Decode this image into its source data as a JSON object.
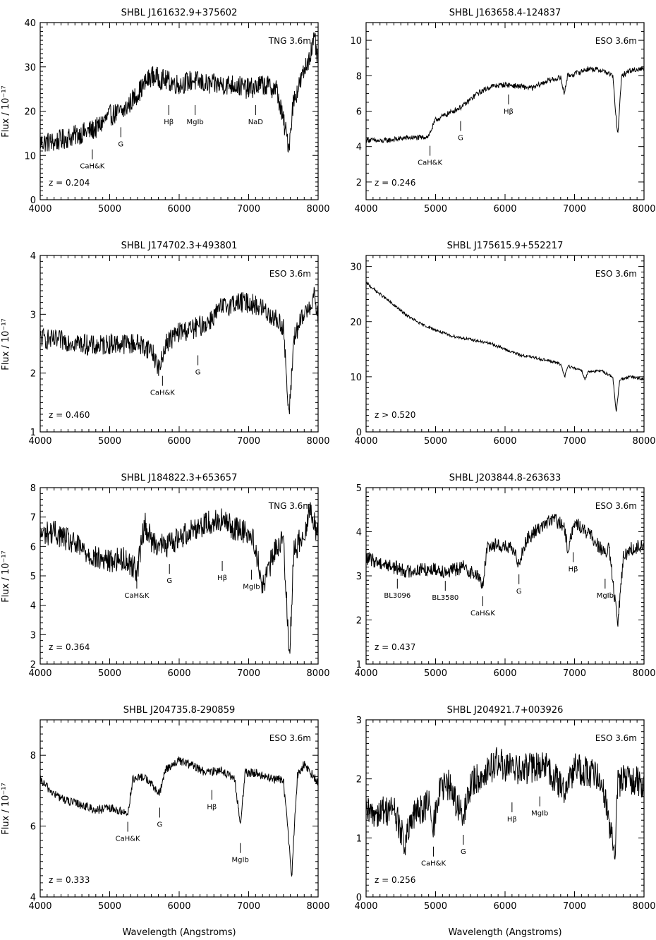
{
  "figure": {
    "x_axis_label": "Wavelength (Angstroms)",
    "y_axis_label": "Flux / 10⁻¹⁷"
  },
  "chart_data": [
    {
      "type": "line",
      "title": "SHBL J161632.9+375602",
      "xlabel": "Wavelength (Angstroms)",
      "ylabel": "Flux / 10⁻¹⁷",
      "xlim": [
        4000,
        8000
      ],
      "ylim": [
        0,
        40
      ],
      "xticks": [
        4000,
        5000,
        6000,
        7000,
        8000
      ],
      "yticks": [
        0,
        10,
        20,
        30,
        40
      ],
      "instrument": "TNG 3.6m",
      "redshift_label": "z = 0.204",
      "series": [
        {
          "x": [
            4000,
            4200,
            4400,
            4600,
            4800,
            5000,
            5200,
            5400,
            5600,
            5800,
            6000,
            6200,
            6400,
            6600,
            6800,
            7000,
            7200,
            7400,
            7580,
            7640,
            7800,
            7950,
            8000
          ],
          "y": [
            13,
            13,
            14,
            15,
            16,
            19,
            20,
            24,
            28,
            27,
            26,
            27,
            26,
            26,
            26,
            25,
            26,
            25,
            12,
            22,
            29,
            36,
            31
          ]
        }
      ],
      "lines": [
        {
          "label": "CaH&K",
          "x": 4750,
          "flux": 12
        },
        {
          "label": "G",
          "x": 5160,
          "flux": 17
        },
        {
          "label": "Hβ",
          "x": 5850,
          "flux": 22
        },
        {
          "label": "MgIb",
          "x": 6230,
          "flux": 22
        },
        {
          "label": "NaD",
          "x": 7100,
          "flux": 22
        }
      ]
    },
    {
      "type": "line",
      "title": "SHBL J163658.4-124837",
      "xlabel": "Wavelength (Angstroms)",
      "ylabel": "Flux / 10⁻¹⁷",
      "xlim": [
        4000,
        8000
      ],
      "ylim": [
        1,
        11
      ],
      "xticks": [
        4000,
        5000,
        6000,
        7000,
        8000
      ],
      "yticks": [
        2,
        4,
        6,
        8,
        10
      ],
      "instrument": "ESO 3.6m",
      "redshift_label": "z = 0.246",
      "series": [
        {
          "x": [
            4000,
            4200,
            4400,
            4600,
            4800,
            4900,
            5000,
            5200,
            5400,
            5600,
            5800,
            6000,
            6200,
            6400,
            6600,
            6800,
            6850,
            6900,
            7000,
            7200,
            7400,
            7550,
            7620,
            7680,
            7800,
            8000
          ],
          "y": [
            4.4,
            4.3,
            4.4,
            4.5,
            4.5,
            4.6,
            5.5,
            5.9,
            6.3,
            7.0,
            7.4,
            7.5,
            7.4,
            7.3,
            7.7,
            7.9,
            7.0,
            8.0,
            8.1,
            8.4,
            8.3,
            8.0,
            4.6,
            8.0,
            8.3,
            8.4
          ]
        }
      ],
      "lines": [
        {
          "label": "CaH&K",
          "x": 4920,
          "flux": 4.2
        },
        {
          "label": "G",
          "x": 5360,
          "flux": 5.6
        },
        {
          "label": "Hβ",
          "x": 6050,
          "flux": 7.1
        }
      ]
    },
    {
      "type": "line",
      "title": "SHBL J174702.3+493801",
      "xlabel": "Wavelength (Angstroms)",
      "ylabel": "Flux / 10⁻¹⁷",
      "xlim": [
        4000,
        8000
      ],
      "ylim": [
        1,
        4
      ],
      "xticks": [
        4000,
        5000,
        6000,
        7000,
        8000
      ],
      "yticks": [
        1,
        2,
        3,
        4
      ],
      "instrument": "ESO 3.6m",
      "redshift_label": "z = 0.460",
      "series": [
        {
          "x": [
            4000,
            4200,
            4400,
            4600,
            4800,
            5000,
            5200,
            5400,
            5600,
            5720,
            5800,
            6000,
            6200,
            6400,
            6600,
            6800,
            7000,
            7200,
            7400,
            7500,
            7580,
            7650,
            7800,
            7950,
            8000
          ],
          "y": [
            2.6,
            2.55,
            2.55,
            2.5,
            2.45,
            2.5,
            2.5,
            2.5,
            2.4,
            2.05,
            2.5,
            2.7,
            2.75,
            2.85,
            3.1,
            3.2,
            3.2,
            3.1,
            2.9,
            2.8,
            1.2,
            2.6,
            3.0,
            3.3,
            2.9
          ]
        }
      ],
      "lines": [
        {
          "label": "CaH&K",
          "x": 5760,
          "flux": 2.0
        },
        {
          "label": "G",
          "x": 6270,
          "flux": 2.35
        }
      ]
    },
    {
      "type": "line",
      "title": "SHBL J175615.9+552217",
      "xlabel": "Wavelength (Angstroms)",
      "ylabel": "Flux / 10⁻¹⁷",
      "xlim": [
        4000,
        8000
      ],
      "ylim": [
        0,
        32
      ],
      "xticks": [
        4000,
        5000,
        6000,
        7000,
        8000
      ],
      "yticks": [
        0,
        10,
        20,
        30
      ],
      "instrument": "ESO 3.6m",
      "redshift_label": "z > 0.520",
      "series": [
        {
          "x": [
            4000,
            4200,
            4400,
            4600,
            4800,
            5000,
            5200,
            5400,
            5600,
            5800,
            6000,
            6200,
            6400,
            6600,
            6800,
            6860,
            6900,
            7000,
            7100,
            7150,
            7200,
            7400,
            7550,
            7600,
            7650,
            7800,
            8000
          ],
          "y": [
            27,
            25,
            23,
            21,
            19.5,
            18.5,
            17.5,
            17,
            16.5,
            16,
            15,
            14,
            13.5,
            13,
            12.3,
            10,
            12,
            11.5,
            11.3,
            9.5,
            11,
            11,
            10,
            3.5,
            9.5,
            10,
            9.5
          ]
        }
      ],
      "lines": []
    },
    {
      "type": "line",
      "title": "SHBL J184822.3+653657",
      "xlabel": "Wavelength (Angstroms)",
      "ylabel": "Flux / 10⁻¹⁷",
      "xlim": [
        4000,
        8000
      ],
      "ylim": [
        2,
        8
      ],
      "xticks": [
        4000,
        5000,
        6000,
        7000,
        8000
      ],
      "yticks": [
        2,
        3,
        4,
        5,
        6,
        7,
        8
      ],
      "instrument": "TNG 3.6m",
      "redshift_label": "z = 0.364",
      "series": [
        {
          "x": [
            4000,
            4200,
            4400,
            4600,
            4800,
            5000,
            5200,
            5400,
            5500,
            5600,
            5800,
            6000,
            6200,
            6400,
            6600,
            6800,
            7000,
            7100,
            7200,
            7400,
            7500,
            7590,
            7650,
            7800,
            7900,
            8000
          ],
          "y": [
            6.4,
            6.5,
            6.2,
            5.9,
            5.6,
            5.5,
            5.6,
            5.2,
            6.8,
            6.2,
            6.0,
            6.3,
            6.6,
            6.8,
            6.9,
            6.6,
            6.5,
            6.0,
            4.6,
            6.0,
            6.2,
            2.3,
            5.8,
            6.5,
            7.3,
            6.3
          ]
        }
      ],
      "lines": [
        {
          "label": "CaH&K",
          "x": 5390,
          "flux": 5.0
        },
        {
          "label": "G",
          "x": 5860,
          "flux": 5.5
        },
        {
          "label": "Hβ",
          "x": 6620,
          "flux": 5.6
        },
        {
          "label": "MgIb",
          "x": 7040,
          "flux": 5.3
        }
      ]
    },
    {
      "type": "line",
      "title": "SHBL J203844.8-263633",
      "xlabel": "Wavelength (Angstroms)",
      "ylabel": "Flux / 10⁻¹⁷",
      "xlim": [
        4000,
        8000
      ],
      "ylim": [
        1,
        5
      ],
      "xticks": [
        4000,
        5000,
        6000,
        7000,
        8000
      ],
      "yticks": [
        1,
        2,
        3,
        4,
        5
      ],
      "instrument": "ESO 3.6m",
      "redshift_label": "z = 0.437",
      "series": [
        {
          "x": [
            4000,
            4200,
            4400,
            4600,
            4800,
            5000,
            5200,
            5400,
            5600,
            5680,
            5750,
            5900,
            6100,
            6200,
            6300,
            6500,
            6700,
            6850,
            6900,
            7000,
            7100,
            7300,
            7420,
            7500,
            7620,
            7700,
            7800,
            8000
          ],
          "y": [
            3.4,
            3.3,
            3.2,
            3.1,
            3.15,
            3.15,
            3.1,
            3.2,
            3.0,
            2.8,
            3.7,
            3.7,
            3.6,
            3.3,
            3.8,
            4.1,
            4.3,
            4.1,
            3.6,
            4.2,
            4.1,
            3.8,
            3.5,
            3.6,
            1.9,
            3.4,
            3.6,
            3.7
          ]
        }
      ],
      "lines": [
        {
          "label": "BL3096",
          "x": 4450,
          "flux": 3.0
        },
        {
          "label": "BL3580",
          "x": 5140,
          "flux": 2.95
        },
        {
          "label": "CaH&K",
          "x": 5680,
          "flux": 2.6
        },
        {
          "label": "G",
          "x": 6200,
          "flux": 3.1
        },
        {
          "label": "Hβ",
          "x": 6980,
          "flux": 3.6
        },
        {
          "label": "MgIb",
          "x": 7440,
          "flux": 3.0
        }
      ]
    },
    {
      "type": "line",
      "title": "SHBL J204735.8-290859",
      "xlabel": "Wavelength (Angstroms)",
      "ylabel": "Flux / 10⁻¹⁷",
      "xlim": [
        4000,
        8000
      ],
      "ylim": [
        4,
        9
      ],
      "xticks": [
        4000,
        5000,
        6000,
        7000,
        8000
      ],
      "yticks": [
        4,
        6,
        8
      ],
      "instrument": "ESO 3.6m",
      "redshift_label": "z = 0.333",
      "series": [
        {
          "x": [
            4000,
            4200,
            4400,
            4600,
            4800,
            5000,
            5200,
            5260,
            5330,
            5500,
            5720,
            5800,
            6000,
            6200,
            6400,
            6600,
            6800,
            6880,
            6950,
            7100,
            7300,
            7500,
            7620,
            7700,
            7800,
            8000
          ],
          "y": [
            7.3,
            6.9,
            6.7,
            6.6,
            6.45,
            6.5,
            6.4,
            6.35,
            7.3,
            7.4,
            6.9,
            7.6,
            7.85,
            7.7,
            7.5,
            7.6,
            7.3,
            6.05,
            7.5,
            7.5,
            7.35,
            7.3,
            4.6,
            7.4,
            7.75,
            7.25
          ]
        }
      ],
      "lines": [
        {
          "label": "CaH&K",
          "x": 5260,
          "flux": 6.2
        },
        {
          "label": "G",
          "x": 5720,
          "flux": 6.6
        },
        {
          "label": "Hβ",
          "x": 6470,
          "flux": 7.1
        },
        {
          "label": "MgIb",
          "x": 6880,
          "flux": 5.6
        }
      ]
    },
    {
      "type": "line",
      "title": "SHBL J204921.7+003926",
      "xlabel": "Wavelength (Angstroms)",
      "ylabel": "Flux / 10⁻¹⁷",
      "xlim": [
        4000,
        8000
      ],
      "ylim": [
        0,
        3
      ],
      "xticks": [
        4000,
        5000,
        6000,
        7000,
        8000
      ],
      "yticks": [
        0,
        1,
        2,
        3
      ],
      "instrument": "ESO 3.6m",
      "redshift_label": "z = 0.256",
      "series": [
        {
          "x": [
            4000,
            4200,
            4400,
            4550,
            4700,
            4900,
            4960,
            5050,
            5200,
            5400,
            5500,
            5700,
            5900,
            6000,
            6200,
            6400,
            6600,
            6850,
            7000,
            7200,
            7400,
            7580,
            7620,
            7700,
            7900,
            8000
          ],
          "y": [
            1.4,
            1.45,
            1.5,
            0.9,
            1.4,
            1.6,
            1.1,
            1.8,
            1.9,
            1.3,
            1.9,
            2.1,
            2.3,
            2.2,
            2.15,
            2.2,
            2.2,
            1.8,
            2.2,
            2.1,
            2.0,
            0.7,
            1.9,
            2.0,
            2.0,
            1.8
          ]
        }
      ],
      "lines": [
        {
          "label": "CaH&K",
          "x": 4970,
          "flux": 0.9
        },
        {
          "label": "G",
          "x": 5400,
          "flux": 1.1
        },
        {
          "label": "Hβ",
          "x": 6100,
          "flux": 1.65
        },
        {
          "label": "MgIb",
          "x": 6500,
          "flux": 1.75
        }
      ]
    }
  ]
}
